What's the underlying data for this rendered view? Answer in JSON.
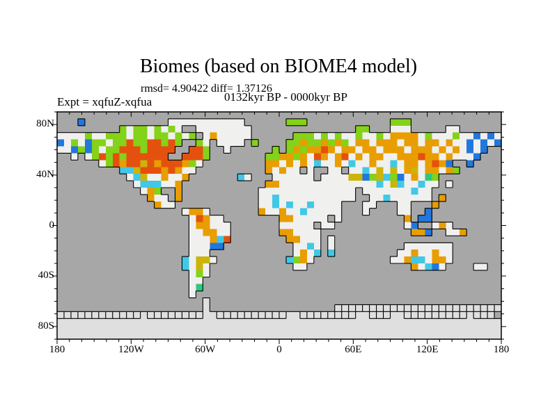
{
  "title": "Biomes (based on BIOME4 model)",
  "stats_line": "rmsd= 4.90422 diff= 1.37126",
  "expt_label": "Expt = xqfuZ-xqfua",
  "period_label": "0132kyr BP - 0000kyr BP",
  "map": {
    "description": "difference map of BIOME4 biomes, anomaly cells over world land mask",
    "palette": {
      "background": "#ffffff",
      "ocean": "#a7a7a7",
      "land": "#f0f0ee",
      "ice": "#dfdfdf",
      "coast": "#000000",
      "frame": "#000000",
      "colors": {
        "g": "#84d219",
        "G": "#2ec87d",
        "c": "#41c8e6",
        "b": "#2277dd",
        "o": "#e89d00",
        "r": "#e4510e",
        "y": "#ccb40a"
      }
    },
    "legend": {
      "g": "yellow-green anomaly cell",
      "G": "spring-green anomaly cell",
      "c": "cyan anomaly cell",
      "b": "blue anomaly cell",
      "o": "orange anomaly cell",
      "r": "red-orange anomaly cell",
      "y": "mustard anomaly cell",
      "L": "unchanged land",
      "i": "sea ice (light gray)",
      "A": "antarctic ice sheet (light gray, coast outlined)",
      ".": "ocean"
    },
    "lat_labels": [
      {
        "value": 80,
        "text": "80N"
      },
      {
        "value": 40,
        "text": "40N"
      },
      {
        "value": 0,
        "text": "0"
      },
      {
        "value": -40,
        "text": "40S"
      },
      {
        "value": -80,
        "text": "80S"
      }
    ],
    "lon_labels": [
      {
        "value": -180,
        "text": "180"
      },
      {
        "value": -120,
        "text": "120W"
      },
      {
        "value": -60,
        "text": "60W"
      },
      {
        "value": 0,
        "text": "0"
      },
      {
        "value": 60,
        "text": "60E"
      },
      {
        "value": 120,
        "text": "120E"
      },
      {
        "value": 180,
        "text": "180"
      }
    ],
    "grid": [
      "................................................................",
      "...b............LLLLLLLLLLL......ggg............ggg.............",
      ".........gLggLgLgL..LLLLLLLL...............gg...LLL.....LL......",
      "LLLLgLLgggLggLggLgLg.LoLLLLL......gggLgLgLLgLLgLooooLgLLLgLLbLbL",
      "bLgLbggLggrggrrgrg..gL.LLLL.g....ggoggogogLooLoooLooLooLoLLbLbLb",
      "LLbgbgLggrrrgrrrr..rrg..L......g.gogooroLooLooLoooLoooLoLoLbLb..",
      "..L.Lgrgrgrrrrrr..rrrg........ggoogoLroLorLoLooLLooorooLoLLLb...",
      "......Lgrorryrorrrogl....... .ooLoLoLcLLoLcLLoLLcLooLorob..b...",
      ".........ccyrrroroLL..........oLoLL.L..LL.LLcLyLyLoyLooLog......",
      "..........LcyLLoLLo.......cL...LLLLLL.LLLLyybgycgbLoLGg......",
      "...........LcccLLo............ooLLLLLLLLLLLLLLcLycLLcLL.L.......",
      "............Log..o...........LLLLLLLLLLLLLL.LLLLLLLcLL..........",
      ".............oLL.o...........LLcLLLLLLLLLLL..LLcLLLLLL.o........",
      "..............oLL............LLcLcLLcLLLL...LL...LL...o........",
      "..................LooL.......oLLoLLcLLLLL...L....LL..b.........",
      "...................LroLL........ooLLLLL.L.........o.bb.........",
      "...................LooLLL.......LLLLL.LL..........Lb..LoL......",
      "...................LLooLL.......ooLLLL.............oob..LLo.....",
      "...................LLLocr........ooLLL.L.......................",
      "...................LLLbb..........LLcL.L..........LLLLLLL......",
      "...................LLL............LoLc.c.........LLoLLoLL......",
      "..................cLyyL..........cgoL...........LLoccLooL.....",
      "..................cLyL............LL...............oLcbL....LL.",
      "...................LgL..........................................L....LL.",
      "...................LL................................................L..",
      "...................LG...........................................",
      "...................L............................................",
      ".....................A..........................................",
      ".....................A..................iiiiiiiiiiiiiiiiiiiiiiii",
      "iiiiiiiiiiiiAiiiiiiiiAAiiiiiiiiiiAAiiiiiiiiAAiiiAAiiiiiiiiiAiii",
      "AAAAAAAAAAAAAAAAAAAAAAAAAAAAAAAAAAAAAAAAAAAAAAAAAAAAAAAAAAAAAAAA",
      "AAAAAAAAAAAAAAAAAAAAAAAAAAAAAAAAAAAAAAAAAAAAAAAAAAAAAAAAAAAAAAAA",
      "AAAAAAAAAAAAAAAAAAAAAAAAAAAAAAAAAAAAAAAAAAAAAAAAAAAAAAAAAAAAAAAA"
    ]
  }
}
